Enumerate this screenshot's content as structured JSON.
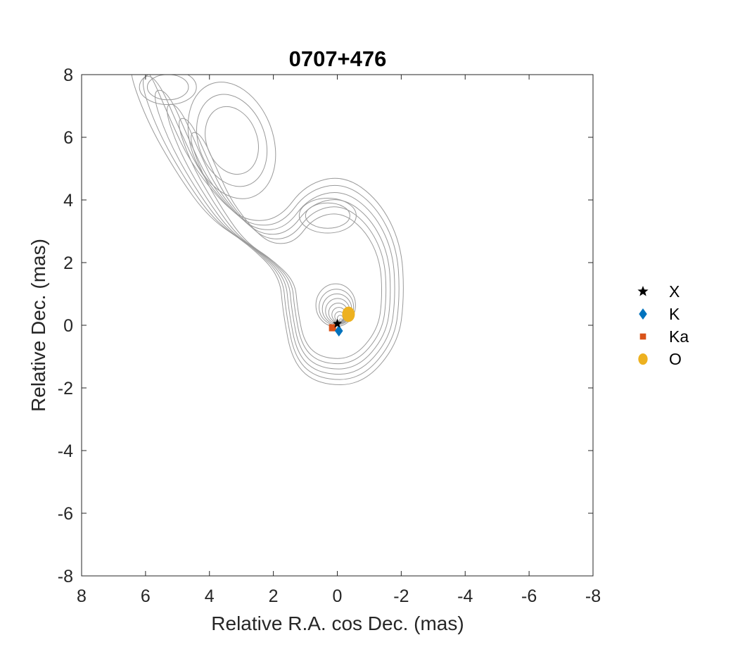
{
  "chart_data": {
    "type": "scatter",
    "title": "0707+476",
    "xlabel": "Relative R.A. cos Dec. (mas)",
    "ylabel": "Relative Dec. (mas)",
    "xlim": [
      8,
      -8
    ],
    "ylim": [
      -8,
      8
    ],
    "x_reversed": true,
    "xticks": [
      8,
      6,
      4,
      2,
      0,
      -2,
      -4,
      -6,
      -8
    ],
    "yticks": [
      8,
      6,
      4,
      2,
      0,
      -2,
      -4,
      -6,
      -8
    ],
    "grid": false,
    "legend_position": "right",
    "background": "contour map of source (gray lines)",
    "series": [
      {
        "name": "X",
        "marker": "star",
        "color": "#000000",
        "x": 0.0,
        "y": 0.05
      },
      {
        "name": "K",
        "marker": "diamond",
        "color": "#0072BD",
        "x": -0.05,
        "y": -0.18
      },
      {
        "name": "Ka",
        "marker": "square",
        "color": "#D95319",
        "x": 0.15,
        "y": -0.08
      },
      {
        "name": "O",
        "marker": "ellipse",
        "color": "#EDB120",
        "x": -0.35,
        "y": 0.35
      }
    ]
  }
}
